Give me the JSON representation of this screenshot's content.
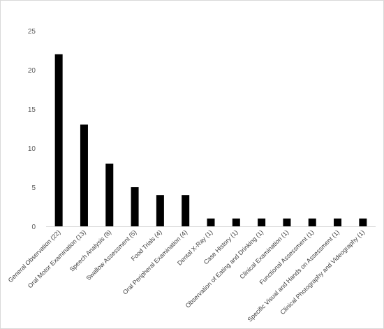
{
  "chart_data": {
    "type": "bar",
    "title": "",
    "xlabel": "",
    "ylabel": "",
    "categories": [
      "General Observation (22)",
      "Oral Motor Examination (13)",
      "Speech Analysis (8)",
      "Swallow Assessment (5)",
      "Food Trials (4)",
      "Oral Peripheral Examination (4)",
      "Dental X-Ray (1)",
      "Case History (1)",
      "Observation of Eating and Drinking (1)",
      "Clinical Examination (1)",
      "Functional Assessment (1)",
      "Specific Visual and Hands on Assessment (1)",
      "Clinical Photography and Videography (1)"
    ],
    "values": [
      22,
      13,
      8,
      5,
      4,
      4,
      1,
      1,
      1,
      1,
      1,
      1,
      1
    ],
    "ylim": [
      0,
      25
    ],
    "yticks": [
      0,
      5,
      10,
      15,
      20,
      25
    ],
    "grid": false,
    "legend": "none",
    "bar_color": "#000000",
    "axis_color": "#d9d9d9",
    "tick_color": "#595959",
    "label_color": "#404040"
  }
}
